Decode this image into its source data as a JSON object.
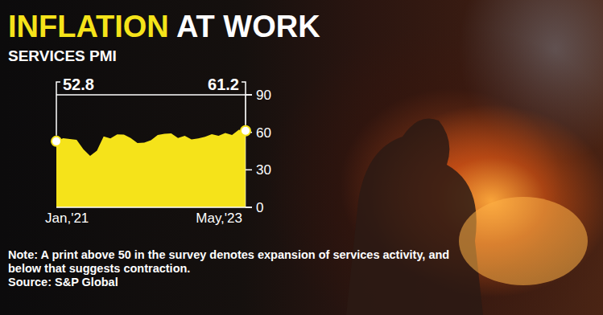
{
  "chart_data": {
    "type": "area",
    "title": "INFLATION AT WORK",
    "subtitle": "SERVICES PMI",
    "categories": [
      "Jan,'21",
      null,
      null,
      null,
      null,
      null,
      null,
      null,
      null,
      null,
      null,
      null,
      null,
      null,
      null,
      null,
      null,
      null,
      null,
      null,
      null,
      null,
      null,
      null,
      null,
      null,
      null,
      null,
      "May,'23"
    ],
    "values": [
      52.8,
      55.3,
      54.6,
      54.0,
      46.4,
      41.2,
      45.4,
      56.7,
      55.2,
      58.4,
      58.1,
      55.5,
      51.5,
      51.8,
      53.6,
      57.9,
      58.9,
      59.2,
      55.5,
      57.2,
      54.3,
      55.1,
      56.4,
      58.5,
      57.2,
      59.4,
      57.8,
      62.0,
      61.2
    ],
    "value_labels": [
      "52.8",
      null,
      null,
      null,
      null,
      null,
      null,
      null,
      null,
      null,
      null,
      null,
      null,
      null,
      null,
      null,
      null,
      null,
      null,
      null,
      null,
      null,
      null,
      null,
      null,
      null,
      null,
      null,
      "61.2"
    ],
    "data_labels": true,
    "color": "#f5e31a",
    "ylim": [
      0,
      90
    ],
    "yticks": [
      0,
      30,
      60,
      90
    ],
    "grid": false,
    "note": "Note: A print above 50 in the survey denotes expansion of services activity, and below that suggests contraction.",
    "source": "Source: S&P Global"
  }
}
